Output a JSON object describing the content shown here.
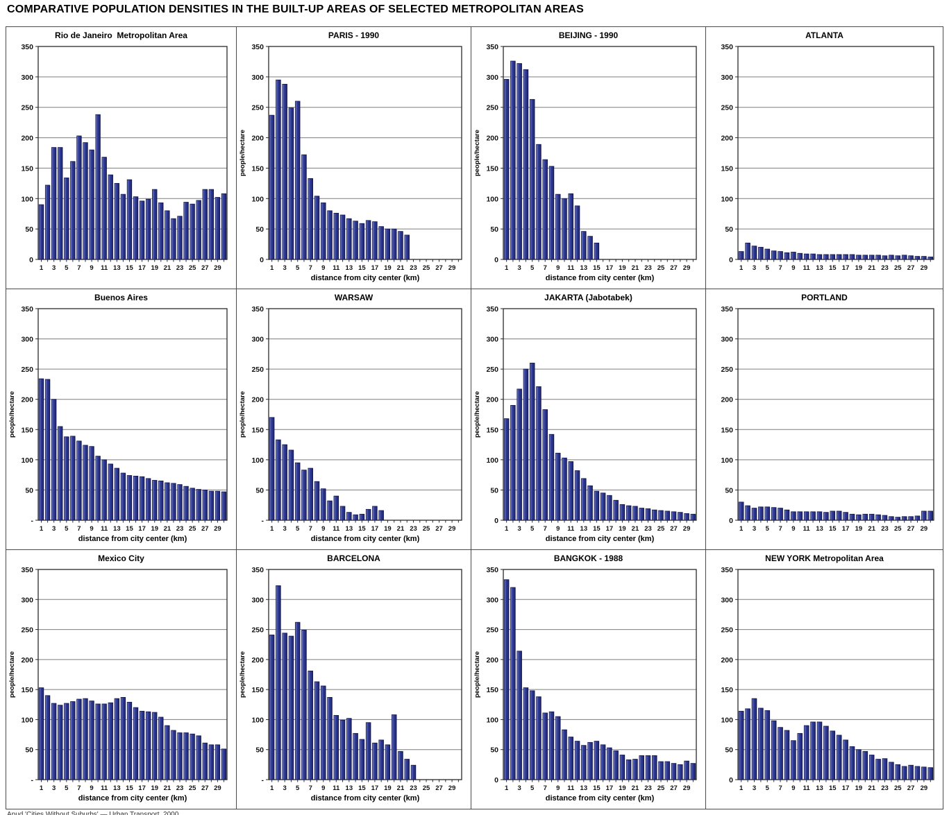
{
  "page": {
    "title": "COMPARATIVE POPULATION DENSITIES IN THE BUILT-UP AREAS OF SELECTED METROPOLITAN AREAS",
    "source_note": "Apud 'Cities Without Suburbs' — Urban Transport, 2000"
  },
  "colors": {
    "bar_fill": "#2e3a94",
    "bar_highlight": "#9aa1d4",
    "bar_shadow": "#141950",
    "bar_edge": "#10134d",
    "grid_line": "#7d7d7d",
    "axis": "#2a2a2a",
    "panel_border": "#4a4a4a",
    "background": "#ffffff"
  },
  "axis": {
    "ylim": [
      0,
      350
    ],
    "ytick_step": 50,
    "categories_km": [
      1,
      2,
      3,
      4,
      5,
      6,
      7,
      8,
      9,
      10,
      11,
      12,
      13,
      14,
      15,
      16,
      17,
      18,
      19,
      20,
      21,
      22,
      23,
      24,
      25,
      26,
      27,
      28,
      29,
      30
    ],
    "xtick_labels": [
      1,
      3,
      5,
      7,
      9,
      11,
      13,
      15,
      17,
      19,
      21,
      23,
      25,
      27,
      29
    ],
    "grid": true,
    "legend": "none"
  },
  "chart_data": [
    {
      "type": "bar",
      "title": "Rio de Janeiro  Metropolitan Area",
      "ylabel": "",
      "xlabel": "",
      "zero_tick_label": "0",
      "ylim": [
        0,
        350
      ],
      "values": [
        90,
        122,
        184,
        184,
        134,
        161,
        203,
        192,
        180,
        238,
        168,
        139,
        125,
        107,
        131,
        103,
        96,
        99,
        115,
        93,
        80,
        67,
        71,
        94,
        91,
        97,
        115,
        115,
        102,
        108
      ]
    },
    {
      "type": "bar",
      "title": "PARIS - 1990",
      "ylabel": "people/hectare",
      "xlabel": "distance from city center (km)",
      "zero_tick_label": "0",
      "ylim": [
        0,
        350
      ],
      "values": [
        237,
        295,
        288,
        249,
        260,
        172,
        133,
        104,
        93,
        80,
        76,
        73,
        67,
        63,
        59,
        64,
        62,
        54,
        50,
        50,
        46,
        40,
        0,
        0,
        0,
        0,
        0,
        0,
        0,
        0
      ]
    },
    {
      "type": "bar",
      "title": "BEIJING - 1990",
      "ylabel": "people/hectare",
      "xlabel": "distance from city center (km)",
      "zero_tick_label": "0",
      "ylim": [
        0,
        350
      ],
      "values": [
        296,
        326,
        322,
        312,
        263,
        189,
        164,
        153,
        107,
        100,
        108,
        88,
        46,
        38,
        27,
        0,
        0,
        0,
        0,
        0,
        0,
        0,
        0,
        0,
        0,
        0,
        0,
        0,
        0,
        0
      ]
    },
    {
      "type": "bar",
      "title": "ATLANTA",
      "ylabel": "",
      "xlabel": "",
      "zero_tick_label": "0",
      "ylim": [
        0,
        350
      ],
      "values": [
        13,
        27,
        22,
        20,
        17,
        14,
        13,
        11,
        12,
        10,
        9,
        9,
        8,
        8,
        8,
        8,
        8,
        8,
        7,
        7,
        7,
        7,
        6,
        7,
        6,
        7,
        6,
        5,
        5,
        4
      ]
    },
    {
      "type": "bar",
      "title": "Buenos Aires",
      "ylabel": "people/hectare",
      "xlabel": "distance from city center (km)",
      "zero_tick_label": "-",
      "ylim": [
        0,
        350
      ],
      "values": [
        234,
        233,
        200,
        155,
        138,
        139,
        131,
        124,
        122,
        106,
        100,
        93,
        86,
        78,
        74,
        73,
        72,
        69,
        66,
        65,
        62,
        61,
        59,
        56,
        53,
        51,
        50,
        48,
        48,
        47
      ]
    },
    {
      "type": "bar",
      "title": "WARSAW",
      "ylabel": "people/hectare",
      "xlabel": "distance from city center (km)",
      "zero_tick_label": "-",
      "ylim": [
        0,
        350
      ],
      "values": [
        170,
        133,
        125,
        116,
        95,
        83,
        86,
        64,
        52,
        32,
        40,
        23,
        13,
        9,
        10,
        18,
        23,
        16,
        0,
        0,
        0,
        0,
        0,
        0,
        0,
        0,
        0,
        0,
        0,
        0
      ]
    },
    {
      "type": "bar",
      "title": "JAKARTA (Jabotabek)",
      "ylabel": "people/hectare",
      "xlabel": "distance from city center (km)",
      "zero_tick_label": "0",
      "ylim": [
        0,
        350
      ],
      "values": [
        168,
        190,
        217,
        250,
        260,
        221,
        183,
        142,
        111,
        103,
        97,
        82,
        69,
        57,
        48,
        45,
        41,
        33,
        26,
        24,
        23,
        20,
        19,
        17,
        16,
        15,
        14,
        13,
        11,
        10
      ]
    },
    {
      "type": "bar",
      "title": "PORTLAND",
      "ylabel": "",
      "xlabel": "",
      "zero_tick_label": "0",
      "ylim": [
        0,
        350
      ],
      "values": [
        30,
        24,
        20,
        22,
        22,
        21,
        20,
        17,
        14,
        14,
        14,
        14,
        14,
        13,
        15,
        15,
        13,
        10,
        9,
        10,
        10,
        9,
        8,
        6,
        5,
        6,
        6,
        7,
        15,
        15
      ]
    },
    {
      "type": "bar",
      "title": "Mexico City",
      "ylabel": "people/hectare",
      "xlabel": "distance from city center (km)",
      "zero_tick_label": "-",
      "ylim": [
        0,
        350
      ],
      "values": [
        153,
        140,
        127,
        124,
        127,
        130,
        134,
        135,
        131,
        126,
        126,
        128,
        135,
        137,
        129,
        120,
        114,
        113,
        112,
        104,
        90,
        82,
        78,
        78,
        76,
        73,
        61,
        58,
        58,
        51
      ]
    },
    {
      "type": "bar",
      "title": "BARCELONA",
      "ylabel": "people/hectare",
      "xlabel": "distance from city center (km)",
      "zero_tick_label": "-",
      "ylim": [
        0,
        350
      ],
      "values": [
        241,
        323,
        244,
        239,
        262,
        249,
        181,
        163,
        156,
        137,
        107,
        99,
        102,
        77,
        67,
        95,
        61,
        66,
        58,
        108,
        47,
        34,
        24,
        0,
        0,
        0,
        0,
        0,
        0,
        0
      ]
    },
    {
      "type": "bar",
      "title": "BANGKOK - 1988",
      "ylabel": "people/hectare",
      "xlabel": "distance from city center (km)",
      "zero_tick_label": "0",
      "ylim": [
        0,
        350
      ],
      "values": [
        333,
        320,
        214,
        153,
        148,
        138,
        111,
        113,
        105,
        83,
        71,
        64,
        57,
        62,
        64,
        58,
        53,
        48,
        41,
        33,
        34,
        40,
        40,
        40,
        30,
        30,
        27,
        25,
        31,
        27
      ]
    },
    {
      "type": "bar",
      "title": "NEW YORK Metropolitan Area",
      "ylabel": "",
      "xlabel": "",
      "zero_tick_label": "0",
      "ylim": [
        0,
        350
      ],
      "values": [
        114,
        118,
        135,
        119,
        115,
        98,
        87,
        82,
        65,
        77,
        90,
        96,
        96,
        89,
        81,
        74,
        66,
        55,
        50,
        47,
        41,
        34,
        35,
        29,
        25,
        22,
        24,
        22,
        21,
        20
      ]
    }
  ]
}
